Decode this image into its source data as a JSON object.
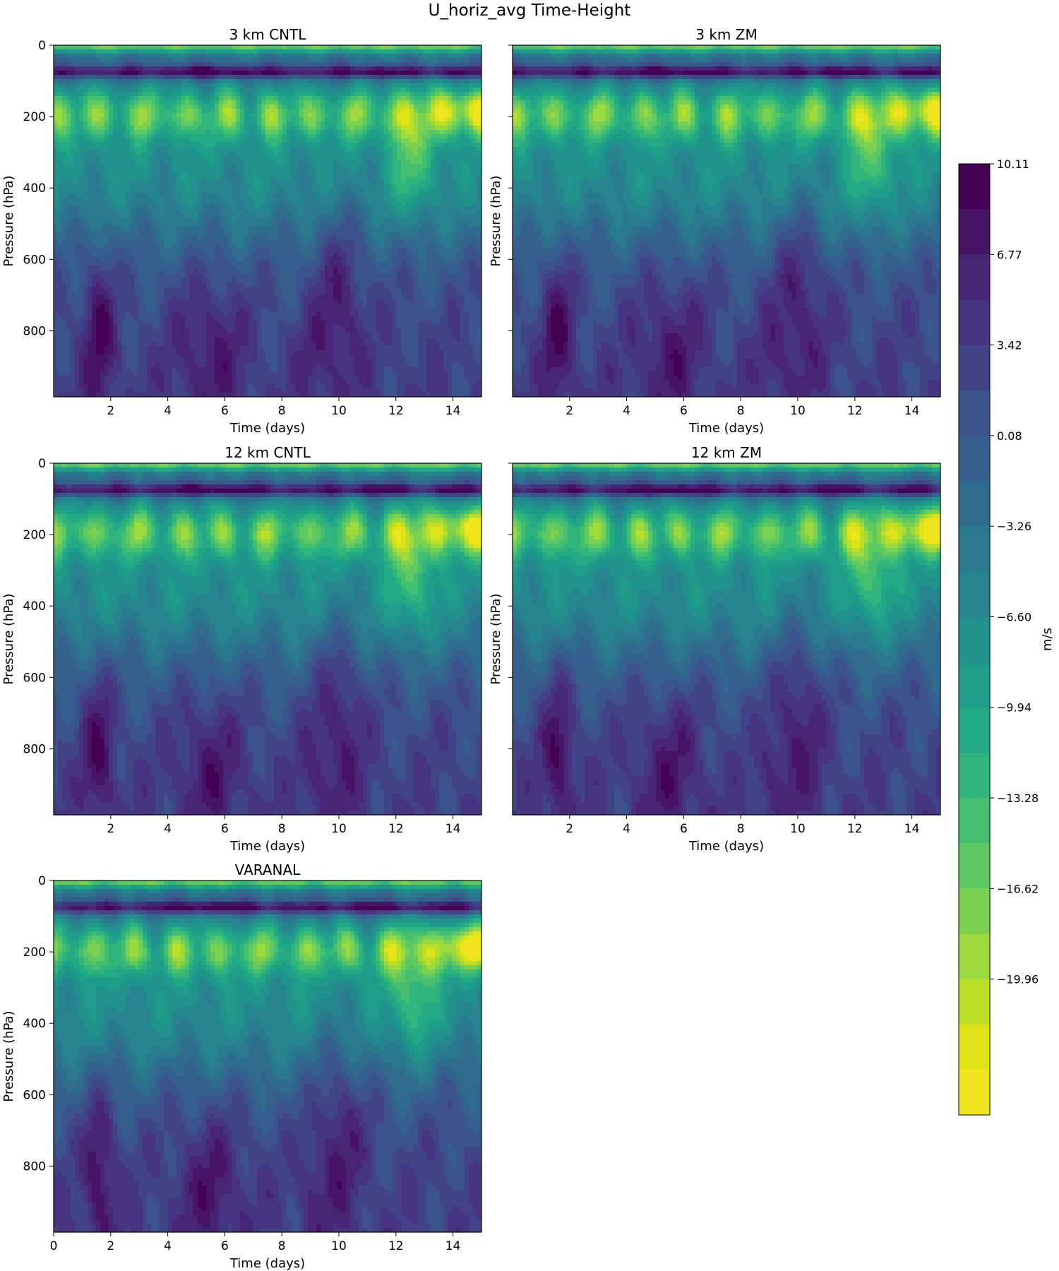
{
  "figure_title": "U_horiz_avg Time-Height",
  "colorbar": {
    "label": "m/s",
    "tick_labels": [
      "10.11",
      "6.77",
      "3.42",
      "0.08",
      "−3.26",
      "−6.60",
      "−9.94",
      "−13.28",
      "−16.62",
      "−19.96"
    ],
    "colors_top_to_bottom": [
      "#440154",
      "#471365",
      "#482475",
      "#463480",
      "#414487",
      "#3b528b",
      "#355f8d",
      "#2f6c8e",
      "#2a788e",
      "#25848e",
      "#21918c",
      "#1e9c89",
      "#22a884",
      "#2fb47c",
      "#44bf70",
      "#5ec962",
      "#7ad151",
      "#9bd93c",
      "#bddf26",
      "#dfe318",
      "#f0e51f"
    ]
  },
  "chart_data": [
    {
      "type": "heatmap",
      "title": "3 km CNTL",
      "xlabel": "Time (days)",
      "ylabel": "Pressure (hPa)",
      "xlim": [
        0,
        15
      ],
      "ylim": [
        985,
        0
      ],
      "xticks": [
        "2",
        "4",
        "6",
        "8",
        "10",
        "12",
        "14"
      ],
      "yticks": [
        "0",
        "200",
        "400",
        "600",
        "800"
      ],
      "value_range": [
        -21.6,
        10.11
      ],
      "units": "m/s"
    },
    {
      "type": "heatmap",
      "title": "3 km ZM",
      "xlabel": "Time (days)",
      "ylabel": "Pressure (hPa)",
      "xlim": [
        0,
        15
      ],
      "ylim": [
        985,
        0
      ],
      "xticks": [
        "2",
        "4",
        "6",
        "8",
        "10",
        "12",
        "14"
      ],
      "yticks": [],
      "value_range": [
        -21.6,
        10.11
      ],
      "units": "m/s"
    },
    {
      "type": "heatmap",
      "title": "12 km CNTL",
      "xlabel": "Time (days)",
      "ylabel": "Pressure (hPa)",
      "xlim": [
        0,
        15
      ],
      "ylim": [
        985,
        0
      ],
      "xticks": [
        "2",
        "4",
        "6",
        "8",
        "10",
        "12",
        "14"
      ],
      "yticks": [
        "0",
        "200",
        "400",
        "600",
        "800"
      ],
      "value_range": [
        -21.6,
        10.11
      ],
      "units": "m/s"
    },
    {
      "type": "heatmap",
      "title": "12 km ZM",
      "xlabel": "Time (days)",
      "ylabel": "Pressure (hPa)",
      "xlim": [
        0,
        15
      ],
      "ylim": [
        985,
        0
      ],
      "xticks": [
        "2",
        "4",
        "6",
        "8",
        "10",
        "12",
        "14"
      ],
      "yticks": [],
      "value_range": [
        -21.6,
        10.11
      ],
      "units": "m/s"
    },
    {
      "type": "heatmap",
      "title": "VARANAL",
      "xlabel": "Time (days)",
      "ylabel": "Pressure (hPa)",
      "xlim": [
        0,
        15
      ],
      "ylim": [
        985,
        0
      ],
      "xticks": [
        "0",
        "2",
        "4",
        "6",
        "8",
        "10",
        "12",
        "14"
      ],
      "yticks": [
        "0",
        "200",
        "400",
        "600",
        "800"
      ],
      "value_range": [
        -21.6,
        10.11
      ],
      "units": "m/s"
    }
  ]
}
